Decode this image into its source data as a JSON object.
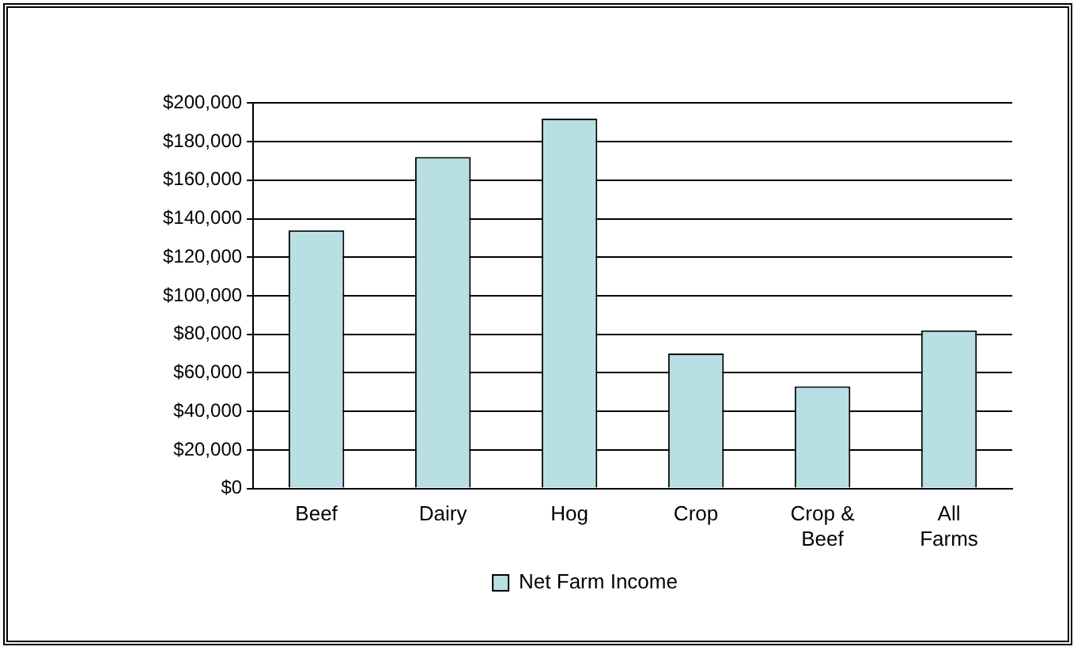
{
  "chart_data": {
    "type": "bar",
    "categories": [
      "Beef",
      "Dairy",
      "Hog",
      "Crop",
      "Crop & Beef",
      "All Farms"
    ],
    "series": [
      {
        "name": "Net Farm Income",
        "color": "#b8dfe3",
        "values": [
          134000,
          172000,
          192000,
          70000,
          53000,
          82000
        ]
      }
    ],
    "ylim": [
      0,
      200000
    ],
    "yticks": [
      {
        "value": 0,
        "label": "$0"
      },
      {
        "value": 20000,
        "label": "$20,000"
      },
      {
        "value": 40000,
        "label": "$40,000"
      },
      {
        "value": 60000,
        "label": "$60,000"
      },
      {
        "value": 80000,
        "label": "$80,000"
      },
      {
        "value": 100000,
        "label": "$100,000"
      },
      {
        "value": 120000,
        "label": "$120,000"
      },
      {
        "value": 140000,
        "label": "$140,000"
      },
      {
        "value": 160000,
        "label": "$160,000"
      },
      {
        "value": 180000,
        "label": "$180,000"
      },
      {
        "value": 200000,
        "label": "$200,000"
      }
    ],
    "grid": "y",
    "legend": "bottom"
  }
}
